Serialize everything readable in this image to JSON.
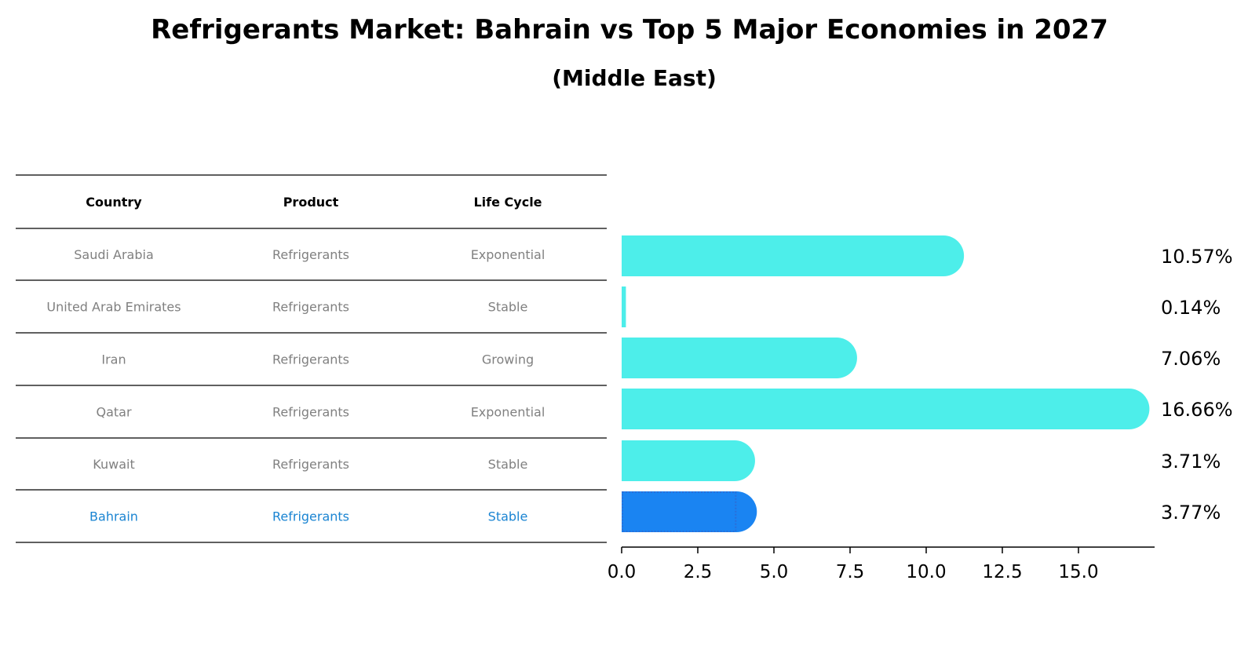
{
  "chart_data": {
    "type": "bar",
    "orientation": "horizontal",
    "title": "Refrigerants Market: Bahrain vs Top 5 Major Economies in 2027",
    "subtitle": "(Middle East)",
    "table": {
      "headers": [
        "Country",
        "Product",
        "Life Cycle"
      ],
      "rows": [
        [
          "Saudi Arabia",
          "Refrigerants",
          "Exponential"
        ],
        [
          "United Arab Emirates",
          "Refrigerants",
          "Stable"
        ],
        [
          "Iran",
          "Refrigerants",
          "Growing"
        ],
        [
          "Qatar",
          "Refrigerants",
          "Exponential"
        ],
        [
          "Kuwait",
          "Refrigerants",
          "Stable"
        ],
        [
          "Bahrain",
          "Refrigerants",
          "Stable"
        ]
      ]
    },
    "categories": [
      "Saudi Arabia",
      "United Arab Emirates",
      "Iran",
      "Qatar",
      "Kuwait",
      "Bahrain"
    ],
    "values": [
      10.57,
      0.14,
      7.06,
      16.66,
      3.71,
      3.77
    ],
    "value_labels": [
      "10.57%",
      "0.14%",
      "7.06%",
      "16.66%",
      "3.71%",
      "3.77%"
    ],
    "highlight": "Bahrain",
    "xlim": [
      0,
      17.5
    ],
    "xticks": [
      0.0,
      2.5,
      5.0,
      7.5,
      10.0,
      12.5,
      15.0
    ],
    "xtick_labels": [
      "0.0",
      "2.5",
      "5.0",
      "7.5",
      "10.0",
      "12.5",
      "15.0"
    ],
    "xlabel": "",
    "ylabel": "",
    "grid": false,
    "colors": {
      "bar": "#4deeea",
      "highlight_bar": "#1a84f2",
      "table_text": "#808080",
      "highlight_text": "#1a84d2",
      "header_text": "#000000",
      "rule": "#000000"
    }
  }
}
